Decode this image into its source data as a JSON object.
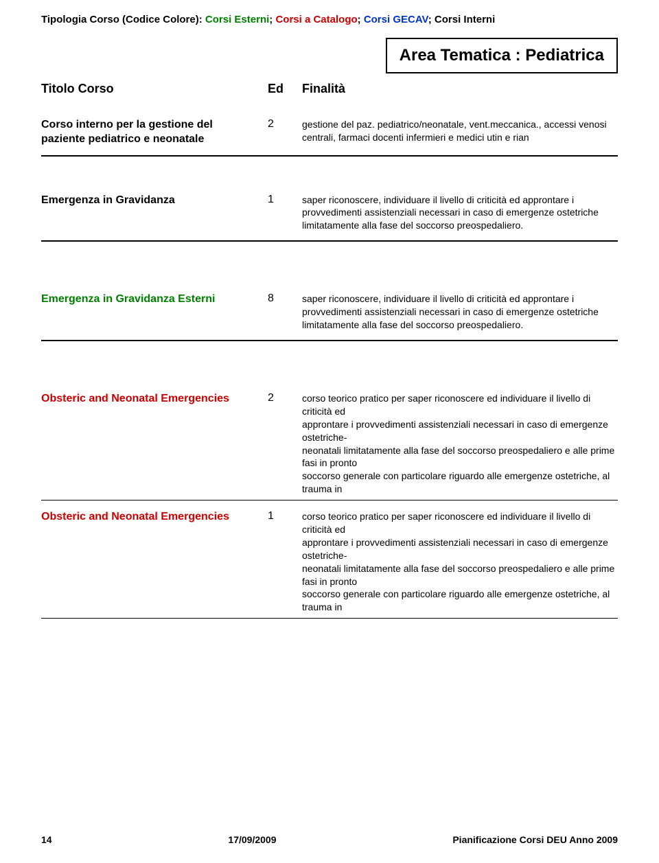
{
  "legend": {
    "prefix": "Tipologia Corso (Codice Colore): ",
    "items": [
      {
        "label": "Corsi Esterni",
        "color": "#008000"
      },
      {
        "label": "Corsi a Catalogo",
        "color": "#cc0000"
      },
      {
        "label": "Corsi GECAV",
        "color": "#0033cc"
      },
      {
        "label": "Corsi Interni",
        "color": "#000000"
      }
    ]
  },
  "area_label": "Area Tematica : Pediatrica",
  "headers": {
    "title": "Titolo Corso",
    "ed": "Ed",
    "finalita": "Finalità"
  },
  "courses": [
    {
      "title": "Corso interno per la gestione del paziente pediatrico e neonatale",
      "title_color": "#000000",
      "ed": "2",
      "desc": "gestione del paz. pediatrico/neonatale, vent.meccanica., accessi venosi centrali, farmaci docenti infermieri e medici utin e rian",
      "desc_max_height": "auto",
      "gap_before": "0",
      "bottom_border": "heavy"
    },
    {
      "title": "Emergenza in Gravidanza",
      "title_color": "#000000",
      "ed": "1",
      "desc": "saper riconoscere, individuare il livello di criticità ed approntare i provvedimenti assistenziali necessari in caso di emergenze ostetriche limitatamente alla fase del soccorso preospedaliero.",
      "desc_max_height": "auto",
      "gap_before": "50",
      "bottom_border": "heavy"
    },
    {
      "title": "Emergenza in Gravidanza Esterni",
      "title_color": "#008000",
      "ed": "8",
      "desc": "saper riconoscere, individuare il livello di criticità ed approntare i provvedimenti assistenziali necessari in caso di emergenze ostetriche limitatamente alla fase del soccorso preospedaliero.",
      "desc_max_height": "auto",
      "gap_before": "70",
      "bottom_border": "heavy"
    },
    {
      "title": "Obsteric and Neonatal Emergencies",
      "title_color": "#cc0000",
      "ed": "2",
      "desc": "corso teorico pratico per saper riconoscere ed individuare il livello di criticità ed\napprontare i provvedimenti assistenziali necessari in caso di emergenze ostetriche-\nneonatali limitatamente alla fase del soccorso preospedaliero e alle prime fasi in pronto\nsoccorso generale con particolare riguardo alle emergenze ostetriche, al trauma in",
      "desc_max_height": "152",
      "gap_before": "70",
      "bottom_border": "thin"
    },
    {
      "title": "Obsteric and Neonatal Emergencies",
      "title_color": "#cc0000",
      "ed": "1",
      "desc": "corso teorico pratico per saper riconoscere ed individuare il livello di criticità ed\napprontare i provvedimenti assistenziali necessari in caso di emergenze ostetriche-\nneonatali limitatamente alla fase del soccorso preospedaliero e alle prime fasi in pronto\nsoccorso generale con particolare riguardo alle emergenze ostetriche, al trauma in",
      "desc_max_height": "152",
      "gap_before": "10",
      "bottom_border": "thin"
    }
  ],
  "footer": {
    "page": "14",
    "date": "17/09/2009",
    "doc": "Pianificazione Corsi DEU Anno 2009"
  }
}
